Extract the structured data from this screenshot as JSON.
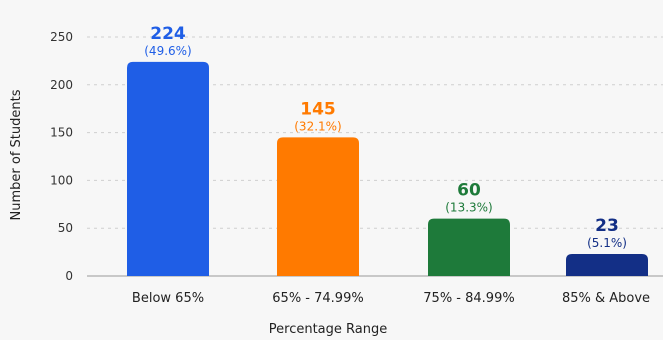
{
  "chart_data": {
    "type": "bar",
    "xlabel": "Percentage Range",
    "ylabel": "Number of Students",
    "ylim": [
      0,
      250
    ],
    "yticks": [
      0,
      50,
      100,
      150,
      200,
      250
    ],
    "grid": true,
    "categories": [
      "Below 65%",
      "65% - 74.99%",
      "75% - 84.99%",
      "85% & Above"
    ],
    "values": [
      224,
      145,
      60,
      23
    ],
    "percent_labels": [
      "(49.6%)",
      "(32.1%)",
      "(13.3%)",
      "(5.1%)"
    ],
    "colors": [
      "#1f5ee6",
      "#ff7a00",
      "#1e7a3a",
      "#132f86"
    ],
    "label_colors": [
      "#1f5ee6",
      "#ff7a00",
      "#1e7a3a",
      "#132f86"
    ]
  }
}
